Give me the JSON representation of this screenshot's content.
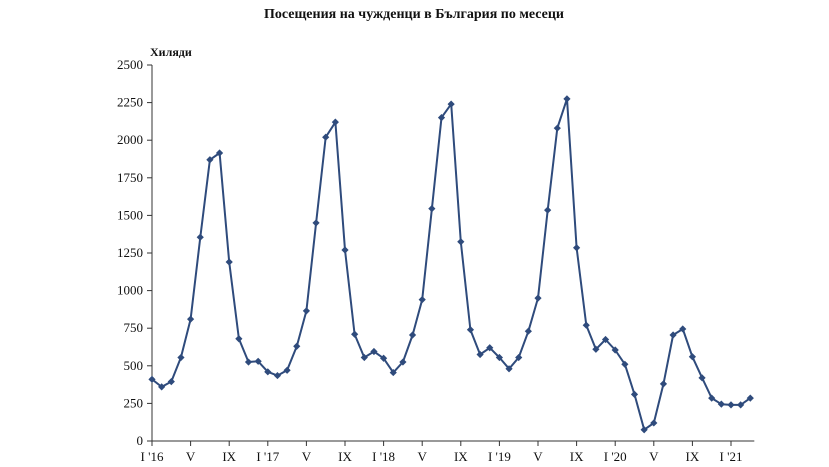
{
  "chart_data": {
    "type": "line",
    "title": "Посещения на чужденци в България по месеци",
    "ylabel": "Хиляди",
    "xlabel": "",
    "ylim": [
      0,
      2500
    ],
    "yticks": [
      0,
      250,
      500,
      750,
      1000,
      1250,
      1500,
      1750,
      2000,
      2250,
      2500
    ],
    "x_tick_labels": [
      {
        "label": "I '16",
        "index": 0
      },
      {
        "label": "V",
        "index": 4
      },
      {
        "label": "IX",
        "index": 8
      },
      {
        "label": "I '17",
        "index": 12
      },
      {
        "label": "V",
        "index": 16
      },
      {
        "label": "IX",
        "index": 20
      },
      {
        "label": "I '18",
        "index": 24
      },
      {
        "label": "V",
        "index": 28
      },
      {
        "label": "IX",
        "index": 32
      },
      {
        "label": "I '19",
        "index": 36
      },
      {
        "label": "V",
        "index": 40
      },
      {
        "label": "IX",
        "index": 44
      },
      {
        "label": "I '20",
        "index": 48
      },
      {
        "label": "V",
        "index": 52
      },
      {
        "label": "IX",
        "index": 56
      },
      {
        "label": "I '21",
        "index": 60
      }
    ],
    "grid": false,
    "series_color": "#2f4b7c",
    "series": [
      {
        "values": [
          410,
          360,
          395,
          555,
          810,
          1355,
          1870,
          1915,
          1190,
          680,
          525,
          530,
          460,
          435,
          470,
          630,
          865,
          1450,
          2020,
          2120,
          1270,
          710,
          555,
          595,
          550,
          455,
          525,
          705,
          940,
          1545,
          2150,
          2240,
          1325,
          740,
          575,
          620,
          555,
          480,
          555,
          730,
          950,
          1535,
          2080,
          2275,
          1285,
          770,
          610,
          675,
          605,
          510,
          310,
          75,
          120,
          380,
          705,
          745,
          560,
          420,
          285,
          245,
          240,
          240,
          285
        ]
      }
    ]
  }
}
